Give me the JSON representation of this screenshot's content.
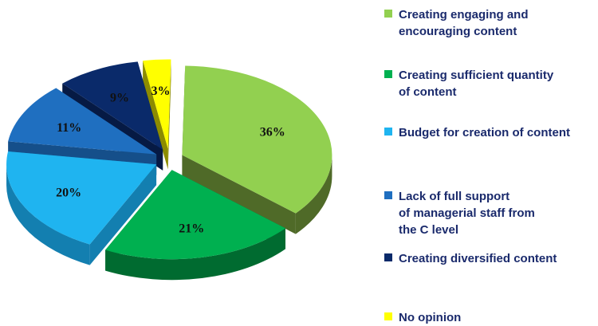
{
  "chart_data": {
    "type": "pie",
    "title": "",
    "slices": [
      {
        "label": "Creating engaging and\nencouraging content",
        "value": 36,
        "display": "36%",
        "color": "#92d050",
        "side_color": "#4f6a28"
      },
      {
        "label": "Creating sufficient quantity\nof content",
        "value": 21,
        "display": "21%",
        "color": "#00b050",
        "side_color": "#006b30"
      },
      {
        "label": "Budget for creation of content",
        "value": 20,
        "display": "20%",
        "color": "#1fb4f0",
        "side_color": "#137fb0"
      },
      {
        "label": "Lack of full support\nof managerial staff from\nthe C level",
        "value": 11,
        "display": "11%",
        "color": "#1f6fc0",
        "side_color": "#154f8a"
      },
      {
        "label": "Creating diversified content",
        "value": 9,
        "display": "9%",
        "color": "#0a2a6a",
        "side_color": "#061a44"
      },
      {
        "label": "No opinion",
        "value": 3,
        "display": "3%",
        "color": "#ffff00",
        "side_color": "#8c8c00"
      }
    ],
    "legend_position": "right",
    "style": "3d-exploded"
  }
}
